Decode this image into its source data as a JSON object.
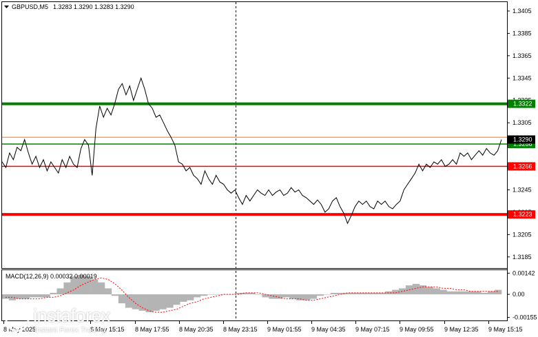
{
  "header": {
    "symbol_label": "GBPUSD,M5",
    "ohlc_label": "1.3283 1.3290 1.3283 1.3290"
  },
  "indicator": {
    "label": "MACD(12,26,9) 0.00032 0.00019"
  },
  "logo": {
    "name": "instaforex",
    "tagline": "Instant Forex Trading"
  },
  "colors": {
    "price_line": "#000000",
    "green_level": "#008000",
    "red_level": "#ff0000",
    "orange_level": "#f4a460",
    "histogram": "#b4b4b4",
    "signal": "#ff0000",
    "vertical_marker": "#000000"
  },
  "chart_data": [
    {
      "type": "line",
      "title": "GBPUSD,M5",
      "ylim": [
        1.3175,
        1.3413
      ],
      "y_ticks": [
        "1.3405",
        "1.3385",
        "1.3365",
        "1.3345",
        "1.3325",
        "1.3305",
        "1.3285",
        "1.3265",
        "1.3245",
        "1.3225",
        "1.3205",
        "1.3185"
      ],
      "x_ticks": [
        "8 May 2025",
        "8 May 15:15",
        "8 May 17:55",
        "8 May 20:35",
        "8 May 23:15",
        "9 May 01:55",
        "9 May 04:35",
        "9 May 07:15",
        "9 May 09:55",
        "9 May 12:35",
        "9 May 15:15"
      ],
      "levels": [
        {
          "value": 1.3322,
          "label": "1.3322",
          "color": "#008000",
          "thick": true
        },
        {
          "value": 1.3286,
          "label": "1.3286",
          "color": "#008000",
          "thick": false
        },
        {
          "value": 1.3266,
          "label": "1.3266",
          "color": "#ff0000",
          "thick": false
        },
        {
          "value": 1.3223,
          "label": "1.3223",
          "color": "#ff0000",
          "thick": true
        },
        {
          "value": 1.3292,
          "label": "",
          "color": "#f4a460",
          "thick": false
        }
      ],
      "current_price": {
        "value": 1.329,
        "label": "1.3290"
      },
      "series": [
        {
          "values": [
            1.327,
            1.3265,
            1.3278,
            1.3272,
            1.3283,
            1.328,
            1.329,
            1.3278,
            1.3268,
            1.3275,
            1.3265,
            1.3272,
            1.3262,
            1.327,
            1.3265,
            1.326,
            1.3272,
            1.3265,
            1.3275,
            1.3268,
            1.3265,
            1.3282,
            1.329,
            1.3285,
            1.3258,
            1.33,
            1.332,
            1.331,
            1.3318,
            1.3312,
            1.3322,
            1.3335,
            1.334,
            1.333,
            1.3338,
            1.3325,
            1.3335,
            1.3345,
            1.3335,
            1.3322,
            1.3318,
            1.331,
            1.3312,
            1.3305,
            1.3298,
            1.3292,
            1.3285,
            1.327,
            1.3268,
            1.3262,
            1.3265,
            1.3258,
            1.3255,
            1.325,
            1.3262,
            1.3255,
            1.325,
            1.3258,
            1.3252,
            1.325,
            1.3245,
            1.3242,
            1.3245,
            1.3238,
            1.3232,
            1.324,
            1.3235,
            1.324,
            1.3245,
            1.3242,
            1.324,
            1.3245,
            1.324,
            1.3243,
            1.3245,
            1.324,
            1.3242,
            1.3247,
            1.3243,
            1.3245,
            1.324,
            1.3238,
            1.3235,
            1.3232,
            1.3236,
            1.3232,
            1.3225,
            1.3228,
            1.3235,
            1.3238,
            1.323,
            1.3224,
            1.3215,
            1.3222,
            1.323,
            1.3235,
            1.3232,
            1.3235,
            1.323,
            1.3228,
            1.3235,
            1.3232,
            1.3235,
            1.323,
            1.3228,
            1.3232,
            1.3235,
            1.3245,
            1.325,
            1.3255,
            1.326,
            1.3268,
            1.3262,
            1.3268,
            1.3265,
            1.327,
            1.3268,
            1.3272,
            1.3266,
            1.3268,
            1.3272,
            1.3268,
            1.3278,
            1.3275,
            1.3278,
            1.3272,
            1.3276,
            1.328,
            1.3276,
            1.3282,
            1.3278,
            1.3276,
            1.328,
            1.329
          ]
        }
      ]
    },
    {
      "type": "bar",
      "title": "MACD(12,26,9)",
      "ylim": [
        -0.00175,
        0.00162
      ],
      "y_ticks": [
        "0.00142",
        "0.00",
        "-0.00155"
      ],
      "series": [
        {
          "name": "MACD",
          "values": [
            -0.0003,
            -0.0004,
            -0.0003,
            -0.0003,
            -0.0002,
            -0.0002,
            -0.0002,
            0.0001,
            0.0004,
            0.0008,
            0.0012,
            0.0013,
            0.0012,
            0.001,
            0.0008,
            0.0004,
            -0.0001,
            -0.0006,
            -0.0009,
            -0.001,
            -0.0011,
            -0.0012,
            -0.0011,
            -0.001,
            -0.0009,
            -0.0007,
            -0.0005,
            -0.0004,
            -0.0002,
            -0.0001,
            0.0,
            0.0,
            0.0,
            0.0,
            0.0001,
            0.0001,
            0.0001,
            0.0,
            -0.0002,
            -0.0003,
            -0.0003,
            -0.0002,
            -0.0003,
            -0.0004,
            -0.0004,
            -0.0003,
            -0.0001,
            0.0,
            0.0001,
            0.0001,
            0.0001,
            0.0001,
            0.0001,
            0.0001,
            0.0001,
            0.0001,
            0.0002,
            0.0003,
            0.0004,
            0.0006,
            0.0007,
            0.0006,
            0.0005,
            0.0004,
            0.0003,
            0.0002,
            0.0002,
            0.0002,
            0.0002,
            0.0002,
            0.0001,
            0.0002,
            0.0003
          ]
        },
        {
          "name": "Signal",
          "values": [
            -0.0002,
            -0.0002,
            -0.0003,
            -0.0003,
            -0.0003,
            -0.0003,
            -0.0002,
            -0.0002,
            -0.0001,
            0.0001,
            0.0003,
            0.0006,
            0.0008,
            0.001,
            0.0011,
            0.001,
            0.0007,
            0.0003,
            -0.0002,
            -0.0006,
            -0.0009,
            -0.0011,
            -0.0012,
            -0.0012,
            -0.0011,
            -0.001,
            -0.0008,
            -0.0006,
            -0.0005,
            -0.0003,
            -0.0002,
            -0.0001,
            0.0,
            0.0,
            0.0,
            0.0001,
            0.0001,
            0.0001,
            0.0,
            -0.0001,
            -0.0002,
            -0.0003,
            -0.0003,
            -0.0003,
            -0.0004,
            -0.0004,
            -0.0003,
            -0.0002,
            -0.0001,
            0.0,
            0.0001,
            0.0001,
            0.0001,
            0.0001,
            0.0001,
            0.0001,
            0.0001,
            0.0001,
            0.0002,
            0.0003,
            0.0004,
            0.0005,
            0.0005,
            0.0005,
            0.0004,
            0.0004,
            0.0003,
            0.0003,
            0.0002,
            0.0002,
            0.0002,
            0.0002,
            0.0002
          ]
        }
      ]
    }
  ]
}
